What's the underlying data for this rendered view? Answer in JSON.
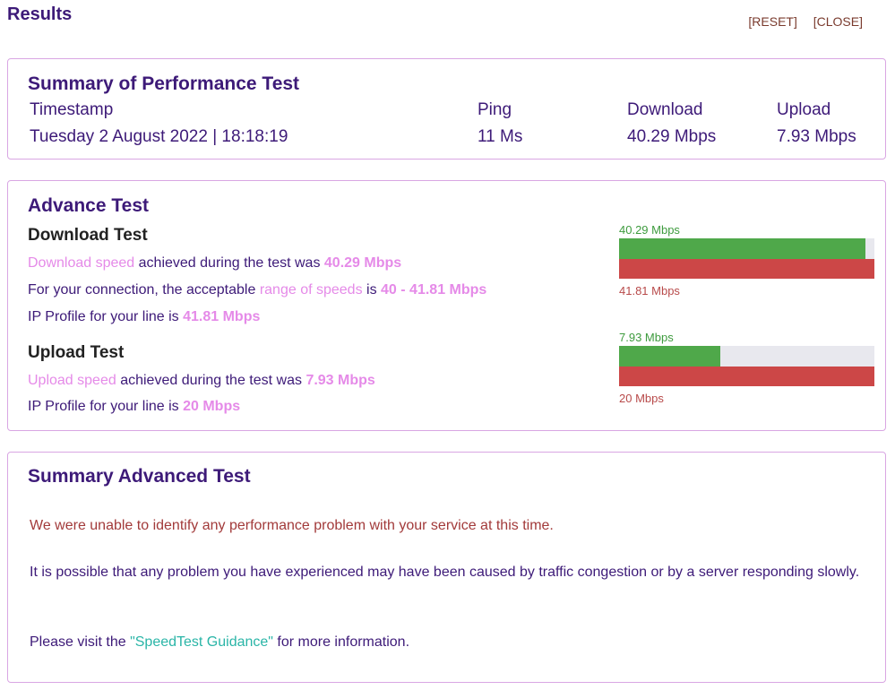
{
  "header": {
    "title": "Results",
    "reset_label": "[RESET]",
    "close_label": "[CLOSE]"
  },
  "summary": {
    "title": "Summary of Performance Test",
    "headers": {
      "timestamp": "Timestamp",
      "ping": "Ping",
      "download": "Download",
      "upload": "Upload"
    },
    "values": {
      "timestamp": "Tuesday 2 August 2022 | 18:18:19",
      "ping": "11 Ms",
      "download": "40.29 Mbps",
      "upload": "7.93 Mbps"
    }
  },
  "advance": {
    "title": "Advance Test",
    "download": {
      "title": "Download Test",
      "speed_link": "Download speed",
      "speed_text": " achieved during the test was ",
      "speed_value": "40.29 Mbps",
      "range_prefix": "For your connection, the acceptable ",
      "range_link": "range of speeds",
      "range_text": " is ",
      "range_value": "40 - 41.81 Mbps",
      "profile_text": "IP Profile for your line is ",
      "profile_value": "41.81 Mbps",
      "bar_measured_label": "40.29 Mbps",
      "bar_profile_label": "41.81 Mbps",
      "measured": 40.29,
      "profile": 41.81
    },
    "upload": {
      "title": "Upload Test",
      "speed_link": "Upload speed",
      "speed_text": " achieved during the test was ",
      "speed_value": "7.93 Mbps",
      "profile_text": "IP Profile for your line is ",
      "profile_value": "20 Mbps",
      "bar_measured_label": "7.93 Mbps",
      "bar_profile_label": "20 Mbps",
      "measured": 7.93,
      "profile": 20
    }
  },
  "summary_advanced": {
    "title": "Summary Advanced Test",
    "message_problem": "We were unable to identify any performance problem with your service at this time.",
    "message_congestion": "It is possible that any problem you have experienced may have been caused by traffic congestion or by a server responding slowly.",
    "visit_prefix": "Please visit the ",
    "visit_link": "\"SpeedTest Guidance\"",
    "visit_suffix": " for more information."
  },
  "colors": {
    "bar_green": "#4fa84a",
    "bar_red": "#cc4747",
    "accent_pink": "#e58ae8",
    "text_purple": "#3d1a78",
    "link_teal": "#2ab5a7"
  }
}
